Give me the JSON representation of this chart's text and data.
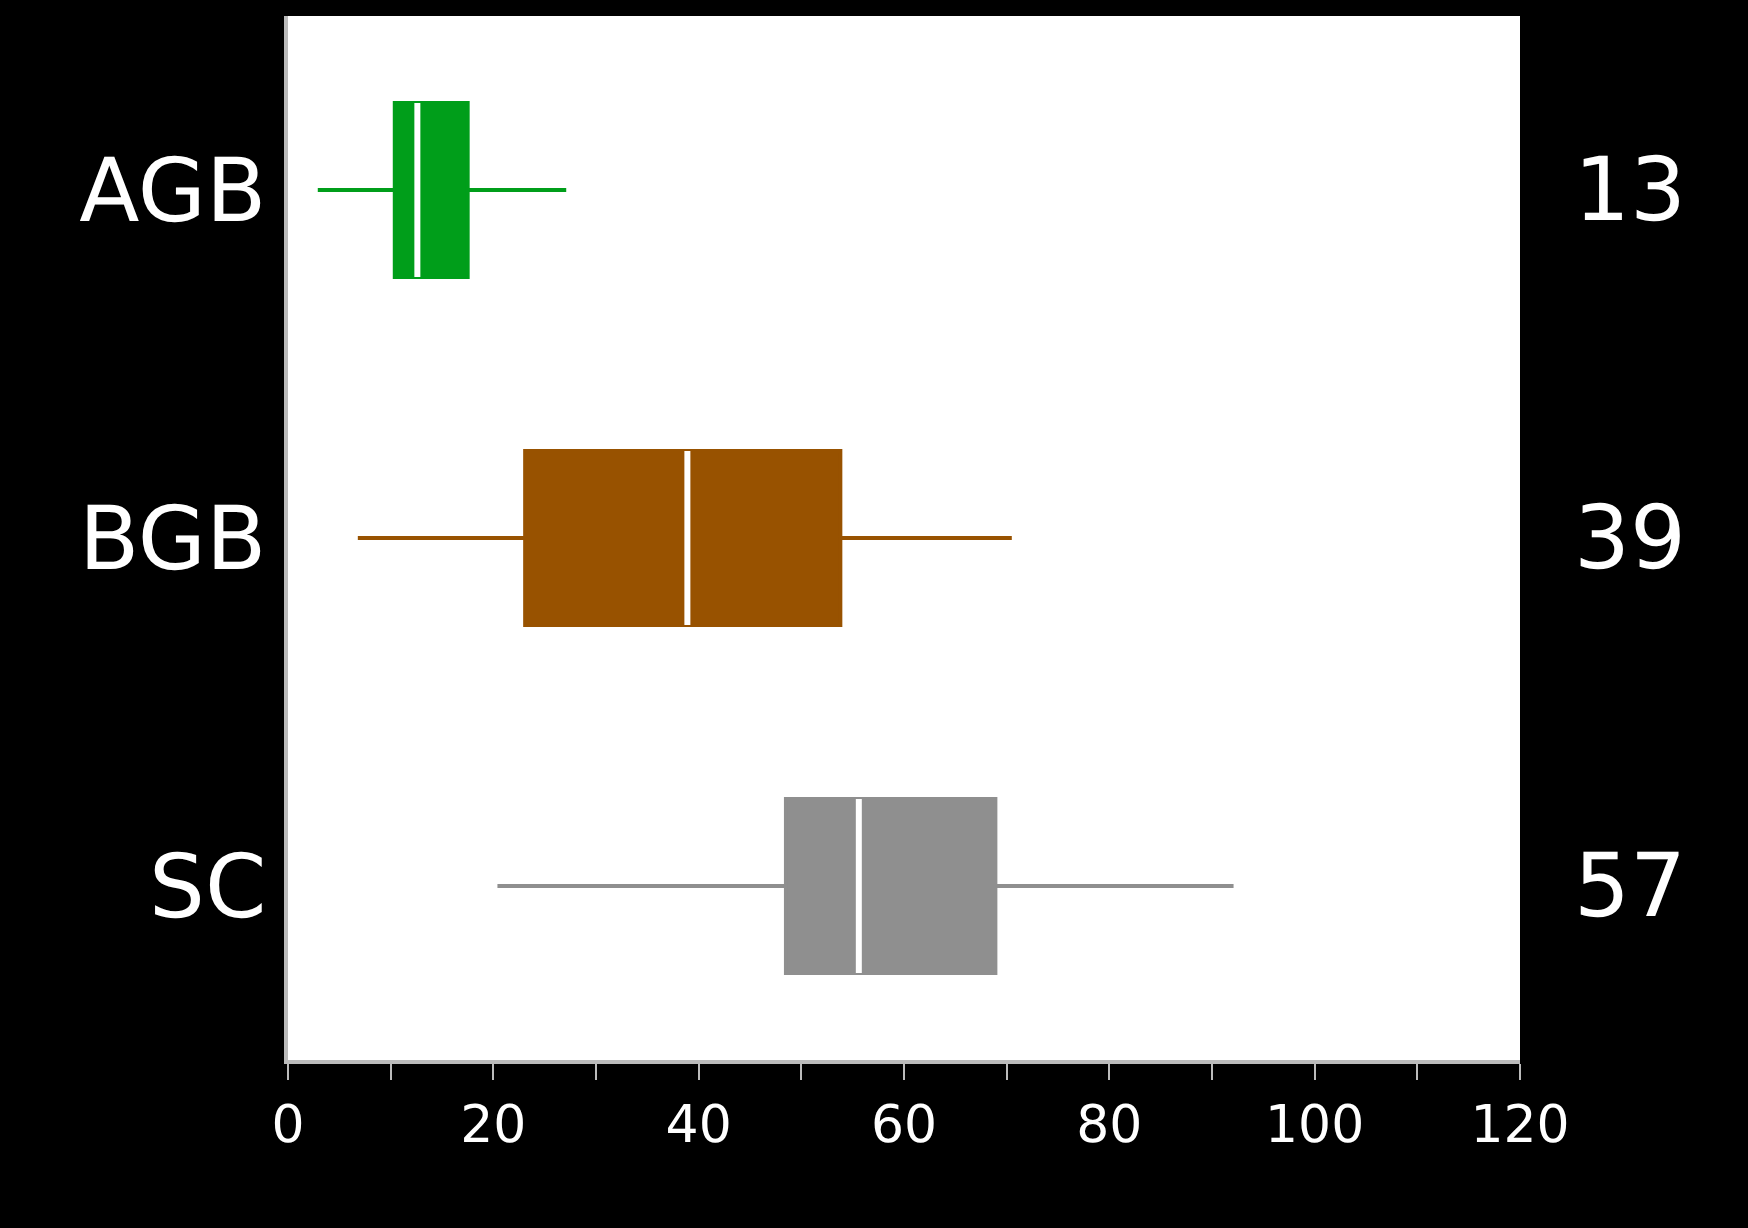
{
  "chart_data": {
    "type": "box",
    "orientation": "horizontal",
    "categories": [
      "AGB",
      "BGB",
      "SC"
    ],
    "colors": [
      "#009e1a",
      "#985200",
      "#8f8f8f"
    ],
    "boxes": [
      {
        "low": 2.9,
        "q1": 10.4,
        "median": 12.6,
        "q3": 17.5,
        "high": 27.1
      },
      {
        "low": 6.8,
        "q1": 23.1,
        "median": 38.9,
        "q3": 53.8,
        "high": 70.5
      },
      {
        "low": 20.4,
        "q1": 48.5,
        "median": 55.6,
        "q3": 68.9,
        "high": 92.1
      }
    ],
    "annotations": [
      "13",
      "39",
      "57"
    ],
    "xlim": [
      0,
      120
    ],
    "xticks": [
      0,
      {
        "value": 10,
        "label": null
      },
      20,
      {
        "value": 30,
        "label": null
      },
      40,
      {
        "value": 50,
        "label": null
      },
      60,
      {
        "value": 70,
        "label": null
      },
      80,
      {
        "value": 90,
        "label": null
      },
      100,
      {
        "value": 110,
        "label": null
      },
      120
    ]
  }
}
